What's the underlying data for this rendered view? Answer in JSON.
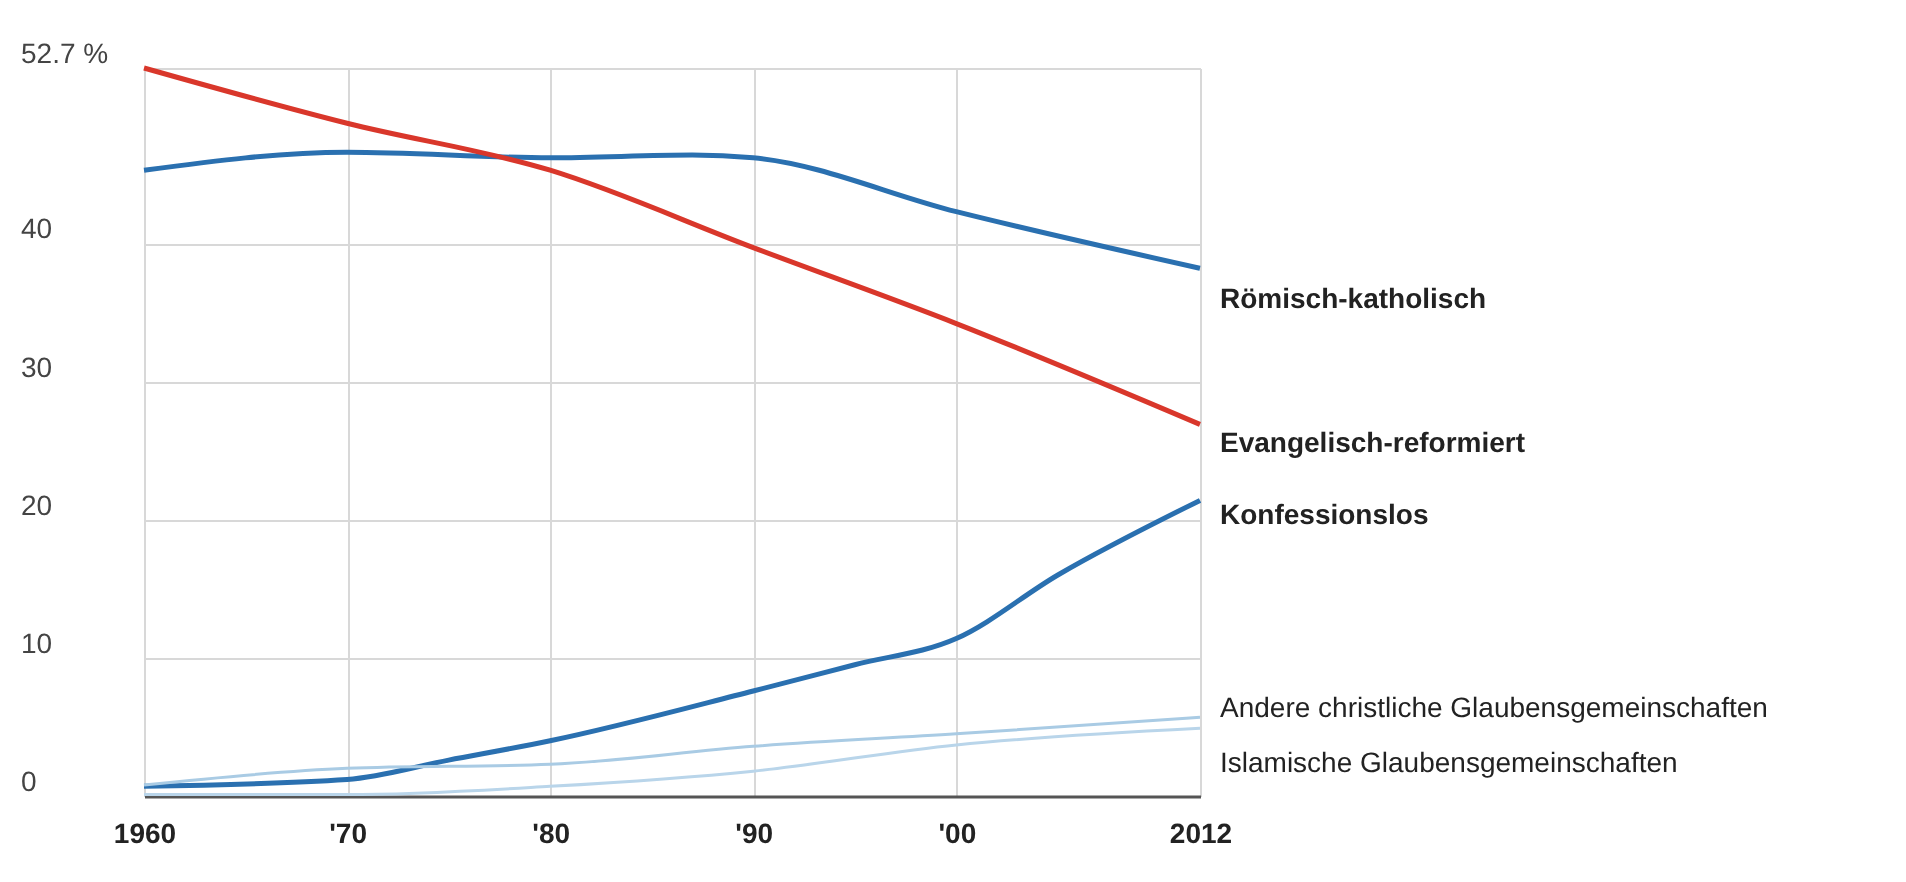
{
  "chart_data": {
    "type": "line",
    "x": [
      1960,
      1970,
      1980,
      1990,
      2000,
      2012
    ],
    "xlim": [
      1960,
      2012
    ],
    "xticks": [
      1960,
      {
        "value": 1970,
        "label": "'70"
      },
      {
        "value": 1980,
        "label": "'80"
      },
      {
        "value": 1990,
        "label": "'90"
      },
      {
        "value": 2000,
        "label": "'00"
      },
      2012
    ],
    "ylim": [
      0,
      52.7
    ],
    "yticks": [
      0,
      10,
      20,
      30,
      40,
      {
        "value": 52.7,
        "label": "52.7 %"
      }
    ],
    "grid": true,
    "series": [
      {
        "name": "Römisch-katholisch",
        "color": "#2a70b0",
        "x": [
          1960,
          1970,
          1980,
          1987,
          1990,
          2000,
          2012
        ],
        "values": [
          45.3,
          46.6,
          46.2,
          46.4,
          46.2,
          42.3,
          38.2
        ]
      },
      {
        "name": "Evangelisch-reformiert",
        "color": "#d9372b",
        "values": [
          52.7,
          48.7,
          45.3,
          39.7,
          34.2,
          26.9
        ]
      },
      {
        "name": "Konfessionslos",
        "color": "#2a70b0",
        "x": [
          1960,
          1970,
          1975,
          1980,
          1990,
          1995,
          2000,
          2005,
          2012
        ],
        "values": [
          0.7,
          1.2,
          2.6,
          4.0,
          7.6,
          9.5,
          11.4,
          16.0,
          21.4
        ]
      },
      {
        "name": "Andere christliche Glaubensgemeinschaften",
        "color": "#a9cbe4",
        "values": [
          0.8,
          2.0,
          2.3,
          3.6,
          4.5,
          5.7
        ]
      },
      {
        "name": "Islamische Glaubensgemeinschaften",
        "color": "#b9d5ea",
        "values": [
          0.1,
          0.1,
          0.7,
          1.8,
          3.7,
          4.9
        ]
      }
    ]
  }
}
